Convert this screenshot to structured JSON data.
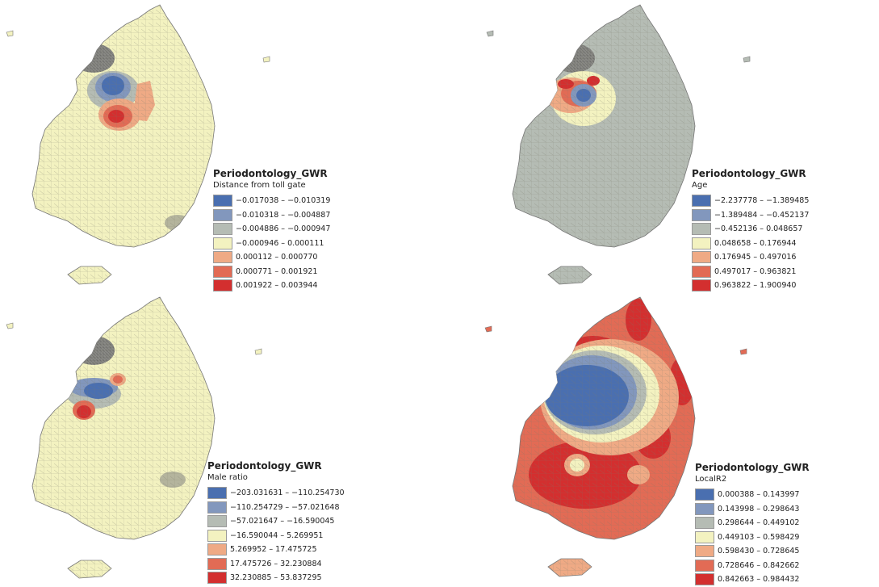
{
  "panels": [
    {
      "title": "Periodontology_GWR",
      "variable": "Distance from toll gate",
      "classes": [
        {
          "label": "−0.017038 – −0.010319",
          "color": "#4a6fb0"
        },
        {
          "label": "−0.010318 – −0.004887",
          "color": "#8297bd"
        },
        {
          "label": "−0.004886 – −0.000947",
          "color": "#b5bcb4"
        },
        {
          "label": "−0.000946 – 0.000111",
          "color": "#f3f2c0"
        },
        {
          "label": "0.000112 – 0.000770",
          "color": "#efaa85"
        },
        {
          "label": "0.000771 – 0.001921",
          "color": "#e26b55"
        },
        {
          "label": "0.001922 – 0.003944",
          "color": "#d32f2f"
        }
      ]
    },
    {
      "title": "Periodontology_GWR",
      "variable": "Age",
      "classes": [
        {
          "label": "−2.237778 – −1.389485",
          "color": "#4a6fb0"
        },
        {
          "label": "−1.389484 – −0.452137",
          "color": "#8297bd"
        },
        {
          "label": "−0.452136 – 0.048657",
          "color": "#b5bcb4"
        },
        {
          "label": "0.048658 – 0.176944",
          "color": "#f3f2c0"
        },
        {
          "label": "0.176945 – 0.497016",
          "color": "#efaa85"
        },
        {
          "label": "0.497017 – 0.963821",
          "color": "#e26b55"
        },
        {
          "label": "0.963822 – 1.900940",
          "color": "#d32f2f"
        }
      ]
    },
    {
      "title": "Periodontology_GWR",
      "variable": "Male ratio",
      "classes": [
        {
          "label": "−203.031631 – −110.254730",
          "color": "#4a6fb0"
        },
        {
          "label": "−110.254729 – −57.021648",
          "color": "#8297bd"
        },
        {
          "label": "−57.021647 – −16.590045",
          "color": "#b5bcb4"
        },
        {
          "label": "−16.590044 – 5.269951",
          "color": "#f3f2c0"
        },
        {
          "label": "5.269952 – 17.475725",
          "color": "#efaa85"
        },
        {
          "label": "17.475726 – 32.230884",
          "color": "#e26b55"
        },
        {
          "label": "32.230885 – 53.837295",
          "color": "#d32f2f"
        }
      ]
    },
    {
      "title": "Periodontology_GWR",
      "variable": "LocalR2",
      "classes": [
        {
          "label": "0.000388 – 0.143997",
          "color": "#4a6fb0"
        },
        {
          "label": "0.143998 – 0.298643",
          "color": "#8297bd"
        },
        {
          "label": "0.298644 – 0.449102",
          "color": "#b5bcb4"
        },
        {
          "label": "0.449103 – 0.598429",
          "color": "#f3f2c0"
        },
        {
          "label": "0.598430 – 0.728645",
          "color": "#efaa85"
        },
        {
          "label": "0.728646 – 0.842662",
          "color": "#e26b55"
        },
        {
          "label": "0.842663 – 0.984432",
          "color": "#d32f2f"
        }
      ]
    }
  ]
}
